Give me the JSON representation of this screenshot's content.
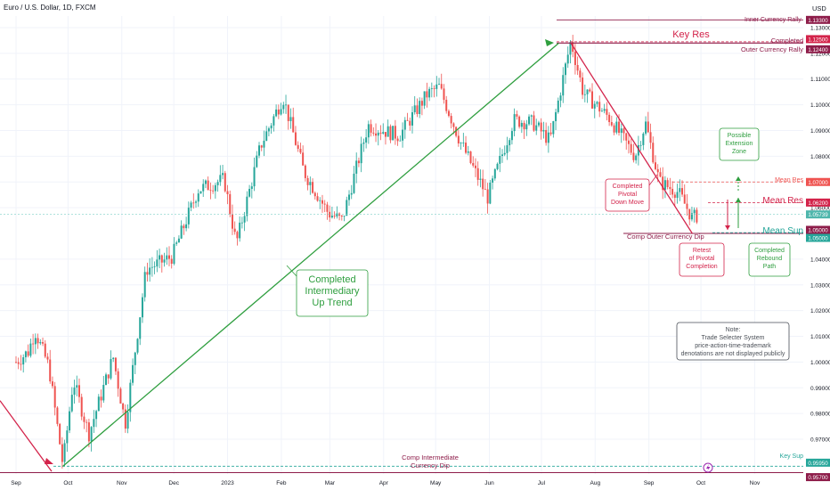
{
  "header": {
    "symbol": "Euro / U.S. Dollar, 1D, FXCM"
  },
  "axis": {
    "currency": "USD"
  },
  "colors": {
    "up": "#26a69a",
    "down": "#ef5350",
    "trend_green": "#2e9e3e",
    "key_red": "#d3234a",
    "maroon": "#8e1d4a",
    "grid": "#f0f3fa",
    "axis_text": "#131722",
    "note_border": "#9aa3ae"
  },
  "annotations": {
    "key_res": "Key Res",
    "inner_rally": "Inner Currency Rally",
    "completed_outer_1": "Completed",
    "completed_outer_2": "Outer Currency Rally",
    "mean_res_small": "Mean Res",
    "mean_res_big": "Mean Res",
    "mean_sup": "Mean Sup",
    "key_sup": "Key Sup",
    "comp_outer_dip": "Comp Outer Currency Dip",
    "comp_inter_dip_1": "Comp Intermediate",
    "comp_inter_dip_2": "Currency Dip",
    "up_trend_1": "Completed",
    "up_trend_2": "Intermediary",
    "up_trend_3": "Up Trend",
    "pivotal_1": "Completed",
    "pivotal_2": "Pivotal",
    "pivotal_3": "Down Move",
    "extension_1": "Possible",
    "extension_2": "Extension",
    "extension_3": "Zone",
    "retest_1": "Retest",
    "retest_2": "of Pivotal",
    "retest_3": "Completion",
    "rebound_1": "Completed",
    "rebound_2": "Rebound",
    "rebound_3": "Path",
    "note_1": "Note:",
    "note_2": "Trade Selecter System",
    "note_3": "price-action-time-trademark",
    "note_4": "denotations are not displayed publicly",
    "event_icon": "lightning-icon"
  },
  "chart_data": {
    "type": "candlestick",
    "symbol": "EUR/USD",
    "timeframe": "1D",
    "ylim": [
      0.9565,
      1.1345
    ],
    "y_ticks": [
      0.97,
      0.98,
      0.99,
      1.0,
      1.01,
      1.02,
      1.03,
      1.04,
      1.06,
      1.07,
      1.08,
      1.09,
      1.1,
      1.11,
      1.12,
      1.13
    ],
    "y_tick_labels": [
      "0.97000",
      "0.98000",
      "0.99000",
      "1.00000",
      "1.01000",
      "1.02000",
      "1.03000",
      "1.04000",
      "1.06000",
      "1.07000",
      "1.08000",
      "1.09000",
      "1.10000",
      "1.11000",
      "1.12000",
      "1.13000"
    ],
    "x_tick_labels": [
      "Sep",
      "Oct",
      "Nov",
      "Dec",
      "2023",
      "Feb",
      "Mar",
      "Apr",
      "May",
      "Jun",
      "Jul",
      "Aug",
      "Sep",
      "Oct",
      "Nov"
    ],
    "x_tick_dates": [
      "2022-09-01",
      "2022-10-01",
      "2022-11-01",
      "2022-12-01",
      "2023-01-01",
      "2023-02-01",
      "2023-03-01",
      "2023-04-01",
      "2023-05-01",
      "2023-06-01",
      "2023-07-01",
      "2023-08-01",
      "2023-09-01",
      "2023-10-01",
      "2023-11-01"
    ],
    "price_path": [
      [
        "2022-09-01",
        1.0
      ],
      [
        "2022-09-08",
        1.004
      ],
      [
        "2022-09-12",
        1.012
      ],
      [
        "2022-09-20",
        0.998
      ],
      [
        "2022-09-28",
        0.96
      ],
      [
        "2022-10-04",
        0.993
      ],
      [
        "2022-10-13",
        0.972
      ],
      [
        "2022-10-27",
        1.002
      ],
      [
        "2022-11-03",
        0.976
      ],
      [
        "2022-11-15",
        1.036
      ],
      [
        "2022-11-30",
        1.041
      ],
      [
        "2022-12-15",
        1.067
      ],
      [
        "2022-12-30",
        1.071
      ],
      [
        "2023-01-06",
        1.046
      ],
      [
        "2023-01-20",
        1.084
      ],
      [
        "2023-02-02",
        1.103
      ],
      [
        "2023-02-14",
        1.074
      ],
      [
        "2023-02-28",
        1.058
      ],
      [
        "2023-03-08",
        1.055
      ],
      [
        "2023-03-23",
        1.092
      ],
      [
        "2023-04-10",
        1.088
      ],
      [
        "2023-04-26",
        1.104
      ],
      [
        "2023-05-03",
        1.107
      ],
      [
        "2023-05-15",
        1.086
      ],
      [
        "2023-05-31",
        1.064
      ],
      [
        "2023-06-15",
        1.094
      ],
      [
        "2023-06-26",
        1.093
      ],
      [
        "2023-07-06",
        1.086
      ],
      [
        "2023-07-18",
        1.125
      ],
      [
        "2023-07-25",
        1.105
      ],
      [
        "2023-08-09",
        1.095
      ],
      [
        "2023-08-24",
        1.08
      ],
      [
        "2023-08-30",
        1.093
      ],
      [
        "2023-09-07",
        1.07
      ],
      [
        "2023-09-18",
        1.066
      ],
      [
        "2023-09-26",
        1.056
      ],
      [
        "2023-09-29",
        1.057
      ]
    ],
    "last_price": 1.05739,
    "levels": [
      {
        "label": "Inner Currency Rally",
        "value": 1.133
      },
      {
        "label": "Key Res",
        "value": 1.125
      },
      {
        "label": "Completed Outer Currency Rally",
        "value": 1.124
      },
      {
        "label": "Mean Res",
        "value": 1.07
      },
      {
        "label": "Mean Res",
        "value": 1.062
      },
      {
        "label": "Mean Sup",
        "value": 1.05
      },
      {
        "label": "Comp Outer Currency Dip",
        "value": 1.05
      },
      {
        "label": "Key Sup",
        "value": 0.9595
      },
      {
        "label": "Comp Intermediate Currency Dip",
        "value": 0.957
      }
    ],
    "price_labels": [
      "1.13300",
      "1.12500",
      "1.12400",
      "1.07000",
      "1.06200",
      "1.05739",
      "1.05000",
      "1.05000",
      "0.95950",
      "0.95700"
    ],
    "trendlines": [
      {
        "label": "Completed Intermediary Up Trend",
        "from": [
          "2022-09-28",
          0.9595
        ],
        "to": [
          "2023-07-11",
          1.124
        ]
      },
      {
        "label": "Completed Pivotal Down Move",
        "from": [
          "2023-07-18",
          1.124
        ],
        "to": [
          "2023-09-26",
          1.05
        ]
      }
    ],
    "grid": true,
    "legend": "none"
  }
}
